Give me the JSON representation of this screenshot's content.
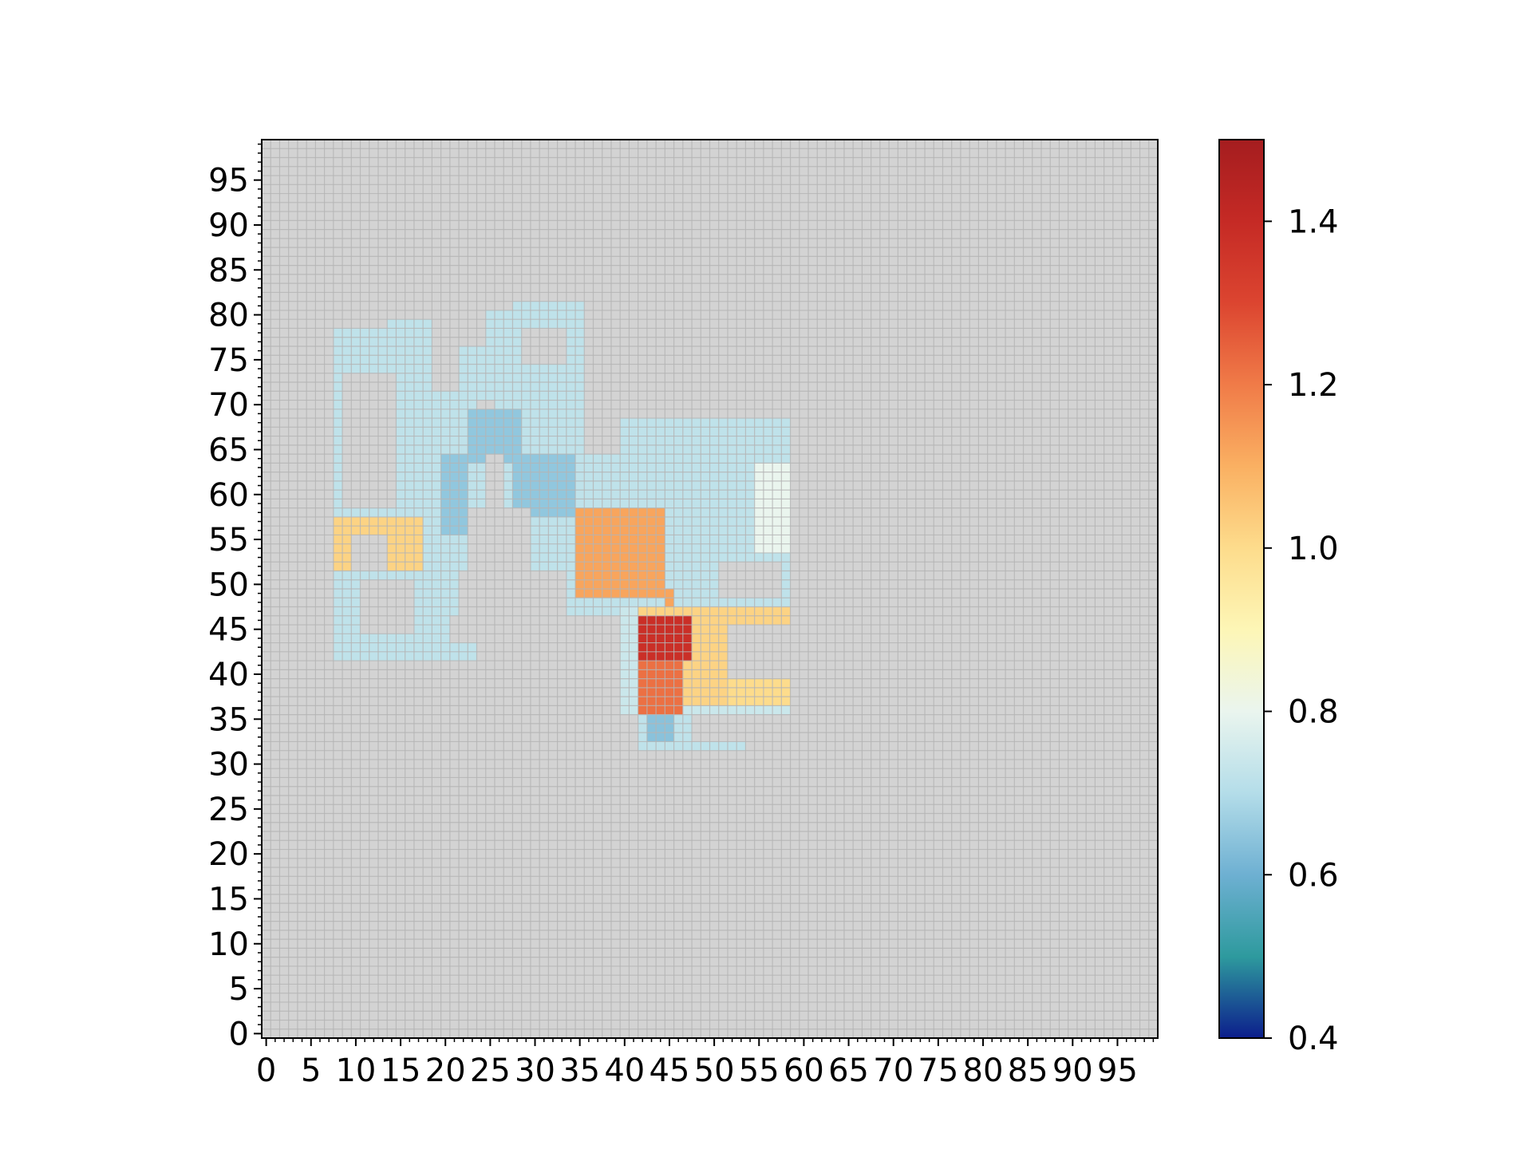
{
  "chart_data": {
    "type": "heatmap",
    "xlim": [
      -0.5,
      99.5
    ],
    "ylim": [
      -0.5,
      99.5
    ],
    "xticks": [
      0,
      5,
      10,
      15,
      20,
      25,
      30,
      35,
      40,
      45,
      50,
      55,
      60,
      65,
      70,
      75,
      80,
      85,
      90,
      95
    ],
    "yticks": [
      0,
      5,
      10,
      15,
      20,
      25,
      30,
      35,
      40,
      45,
      50,
      55,
      60,
      65,
      70,
      75,
      80,
      85,
      90,
      95
    ],
    "minor_locator": 1,
    "grid": true,
    "nan_color": "#d3d3d3",
    "clim": [
      0.4,
      1.5
    ],
    "colormap": [
      "#0c1e8c",
      "#2e9a9e",
      "#6eb0d2",
      "#b4dde9",
      "#eaf5ee",
      "#fdf6b6",
      "#fddc8c",
      "#fab062",
      "#f07b48",
      "#dc4530",
      "#c52a25",
      "#a51d1f"
    ],
    "cticks": [
      0.4,
      0.6,
      0.8,
      {
        "value": 1,
        "label": "1.0"
      },
      1.2,
      1.4
    ],
    "cells": [
      {
        "x": [
          7.5,
          19.5
        ],
        "y": [
          41.5,
          78.5
        ],
        "value": 0.72
      },
      {
        "x": [
          13.5,
          21.5
        ],
        "y": [
          41.5,
          79.5
        ],
        "value": 0.72
      },
      {
        "x": [
          19.5,
          23.5
        ],
        "y": [
          41.5,
          71.5
        ],
        "value": 0.72
      },
      {
        "x": [
          21.5,
          26.5
        ],
        "y": [
          70.5,
          76.5
        ],
        "value": 0.72
      },
      {
        "x": [
          24.5,
          29.5
        ],
        "y": [
          74.5,
          80.5
        ],
        "value": 0.72
      },
      {
        "x": [
          27.5,
          35.5
        ],
        "y": [
          78.5,
          81.5
        ],
        "value": 0.72
      },
      {
        "x": [
          25.5,
          35.5
        ],
        "y": [
          67.5,
          78.5
        ],
        "value": 0.72
      },
      {
        "x": [
          22.5,
          58.5
        ],
        "y": [
          46.5,
          68.5
        ],
        "value": 0.72
      },
      {
        "x": [
          39.5,
          58.5
        ],
        "y": [
          35.5,
          47.5
        ],
        "value": 0.74
      },
      {
        "x": [
          41.5,
          53.5
        ],
        "y": [
          31.5,
          35.5
        ],
        "value": 0.72
      },
      {
        "x": [
          31.5,
          34.5
        ],
        "y": [
          46.5,
          47.5
        ],
        "value": 0.72
      },
      {
        "x": [
          19.5,
          22.5
        ],
        "y": [
          55.5,
          64.5
        ],
        "value": 0.65
      },
      {
        "x": [
          22.5,
          28.5
        ],
        "y": [
          63.5,
          69.5
        ],
        "value": 0.65
      },
      {
        "x": [
          27.5,
          34.5
        ],
        "y": [
          57.5,
          64.5
        ],
        "value": 0.65
      },
      {
        "x": [
          54.5,
          58.5
        ],
        "y": [
          53.5,
          63.5
        ],
        "value": 0.8
      },
      {
        "x": [
          7.5,
          17.5
        ],
        "y": [
          51.5,
          57.5
        ],
        "value": 1.02
      },
      {
        "x": [
          8.5,
          14.5
        ],
        "y": [
          58.5,
          73.5
        ],
        "value": null
      },
      {
        "x": [
          9.5,
          13.5
        ],
        "y": [
          51.5,
          55.5
        ],
        "value": null
      },
      {
        "x": [
          10.5,
          16.5
        ],
        "y": [
          44.5,
          50.5
        ],
        "value": null
      },
      {
        "x": [
          18.5,
          21.5
        ],
        "y": [
          71.5,
          79.5
        ],
        "value": null
      },
      {
        "x": [
          28.5,
          33.5
        ],
        "y": [
          74.5,
          78.5
        ],
        "value": null
      },
      {
        "x": [
          35.5,
          39.5
        ],
        "y": [
          64.5,
          69.5
        ],
        "value": null
      },
      {
        "x": [
          24.5,
          26.5
        ],
        "y": [
          58.5,
          64.5
        ],
        "value": null
      },
      {
        "x": [
          22.5,
          29.5
        ],
        "y": [
          51.5,
          58.5
        ],
        "value": null
      },
      {
        "x": [
          21.5,
          33.5
        ],
        "y": [
          46.5,
          51.5
        ],
        "value": null
      },
      {
        "x": [
          20.5,
          27.5
        ],
        "y": [
          43.5,
          46.5
        ],
        "value": null
      },
      {
        "x": [
          50.5,
          57.5
        ],
        "y": [
          48.5,
          52.5
        ],
        "value": null
      },
      {
        "x": [
          34.5,
          44.5
        ],
        "y": [
          48.5,
          58.5
        ],
        "value": 1.12
      },
      {
        "x": [
          44.5,
          45.5
        ],
        "y": [
          47.5,
          49.5
        ],
        "value": 1.12
      },
      {
        "x": [
          41.5,
          58.5
        ],
        "y": [
          45.5,
          47.5
        ],
        "value": 1.02
      },
      {
        "x": [
          46.5,
          51.5
        ],
        "y": [
          36.5,
          45.5
        ],
        "value": 1.02
      },
      {
        "x": [
          51.5,
          58.5
        ],
        "y": [
          36.5,
          39.5
        ],
        "value": 1.0
      },
      {
        "x": [
          51.5,
          58.5
        ],
        "y": [
          39.5,
          45.5
        ],
        "value": null
      },
      {
        "x": [
          41.5,
          47.5
        ],
        "y": [
          41.5,
          46.5
        ],
        "value": 1.38
      },
      {
        "x": [
          41.5,
          46.5
        ],
        "y": [
          35.5,
          41.5
        ],
        "value": 1.22
      },
      {
        "x": [
          42.5,
          45.5
        ],
        "y": [
          32.5,
          35.5
        ],
        "value": 0.64
      },
      {
        "x": [
          47.5,
          53.5
        ],
        "y": [
          32.5,
          35.5
        ],
        "value": null
      }
    ]
  }
}
